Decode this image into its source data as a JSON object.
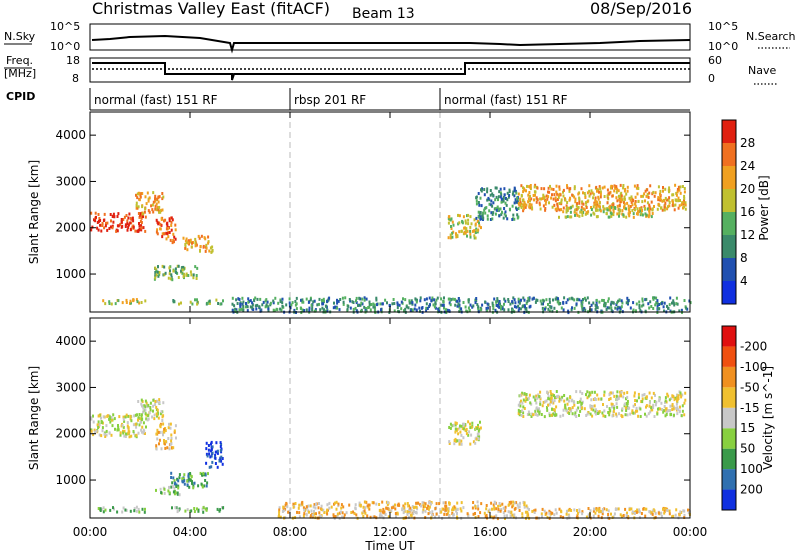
{
  "header": {
    "title": "Christmas Valley East (fitACF)",
    "beam": "Beam 13",
    "date": "08/Sep/2016"
  },
  "top_panels": {
    "nsky_label": "N.Sky",
    "nsky_ticks": [
      "10^5",
      "10^0"
    ],
    "nsearch_label": "N.Search",
    "nsearch_ticks": [
      "10^5",
      "10^0"
    ],
    "freq_label": "Freq.",
    "freq_unit": "[MHz]",
    "freq_ticks": [
      "18",
      "8"
    ],
    "nave_label": "Nave",
    "nave_ticks": [
      "60",
      "0"
    ],
    "cpid_label": "CPID",
    "cpid_segments": [
      {
        "label": "normal (fast) 151 RF",
        "start_h": 0,
        "end_h": 8
      },
      {
        "label": "rbsp 201 RF",
        "start_h": 8,
        "end_h": 14
      },
      {
        "label": "normal (fast) 151 RF",
        "start_h": 14,
        "end_h": 24
      }
    ]
  },
  "chart_data": [
    {
      "type": "heatmap",
      "panel": "power",
      "ylabel": "Slant Range [km]",
      "y_ticks": [
        1000,
        2000,
        3000,
        4000
      ],
      "ylim": [
        180,
        4500
      ],
      "xlim_hours": [
        0,
        24
      ],
      "colorbar": {
        "label": "Power [dB]",
        "ticks": [
          "4",
          "8",
          "12",
          "16",
          "20",
          "24",
          "28"
        ],
        "colors": [
          "#1030e0",
          "#2050b0",
          "#3a8a6a",
          "#55b060",
          "#c0c030",
          "#f0a020",
          "#f07020",
          "#e02010"
        ]
      },
      "regions": [
        {
          "t0": 0.0,
          "t1": 2.2,
          "r0": 1950,
          "r1": 2350,
          "level": 7
        },
        {
          "t0": 1.8,
          "t1": 2.9,
          "r0": 2300,
          "r1": 2800,
          "level": 5
        },
        {
          "t0": 2.6,
          "t1": 3.4,
          "r0": 1700,
          "r1": 2250,
          "level": 6
        },
        {
          "t0": 3.7,
          "t1": 4.9,
          "r0": 1500,
          "r1": 1850,
          "level": 5
        },
        {
          "t0": 2.5,
          "t1": 4.3,
          "r0": 900,
          "r1": 1200,
          "level": 3
        },
        {
          "t0": 0.3,
          "t1": 2.2,
          "r0": 380,
          "r1": 480,
          "level": 4
        },
        {
          "t0": 3.2,
          "t1": 5.3,
          "r0": 380,
          "r1": 480,
          "level": 3
        },
        {
          "t0": 5.6,
          "t1": 24.0,
          "r0": 200,
          "r1": 520,
          "level": 2
        },
        {
          "t0": 14.3,
          "t1": 15.6,
          "r0": 1800,
          "r1": 2300,
          "level": 4
        },
        {
          "t0": 15.4,
          "t1": 17.1,
          "r0": 2200,
          "r1": 2900,
          "level": 2
        },
        {
          "t0": 17.1,
          "t1": 23.8,
          "r0": 2400,
          "r1": 2950,
          "level": 5
        },
        {
          "t0": 18.5,
          "t1": 22.5,
          "r0": 2250,
          "r1": 2500,
          "level": 4
        }
      ]
    },
    {
      "type": "heatmap",
      "panel": "velocity",
      "ylabel": "Slant Range [km]",
      "y_ticks": [
        1000,
        2000,
        3000,
        4000
      ],
      "ylim": [
        180,
        4500
      ],
      "xlim_hours": [
        0,
        24
      ],
      "x_ticks": [
        "00:00",
        "04:00",
        "08:00",
        "12:00",
        "16:00",
        "20:00",
        "00:00"
      ],
      "xlabel": "Time UT",
      "colorbar": {
        "label": "Velocity [m s^-1]",
        "ticks": [
          "200",
          "100",
          "50",
          "15",
          "-15",
          "-50",
          "-100",
          "-200"
        ],
        "colors": [
          "#1030e0",
          "#3070b0",
          "#3a9a4a",
          "#88d040",
          "#c8c8c8",
          "#f0c030",
          "#f09020",
          "#f05010",
          "#e01010"
        ]
      },
      "regions": [
        {
          "t0": 0.0,
          "t1": 2.2,
          "r0": 1950,
          "r1": 2450,
          "level": 4
        },
        {
          "t0": 1.8,
          "t1": 2.9,
          "r0": 2300,
          "r1": 2800,
          "level": 4
        },
        {
          "t0": 2.6,
          "t1": 3.4,
          "r0": 1700,
          "r1": 2250,
          "level": 5
        },
        {
          "t0": 4.6,
          "t1": 5.3,
          "r0": 1300,
          "r1": 1850,
          "level": 0
        },
        {
          "t0": 3.2,
          "t1": 4.7,
          "r0": 850,
          "r1": 1200,
          "level": 2
        },
        {
          "t0": 2.6,
          "t1": 3.6,
          "r0": 700,
          "r1": 900,
          "level": 3
        },
        {
          "t0": 0.3,
          "t1": 2.2,
          "r0": 330,
          "r1": 450,
          "level": 3
        },
        {
          "t0": 3.2,
          "t1": 5.3,
          "r0": 330,
          "r1": 450,
          "level": 3
        },
        {
          "t0": 7.5,
          "t1": 17.5,
          "r0": 200,
          "r1": 560,
          "level": 5
        },
        {
          "t0": 17.5,
          "t1": 24.0,
          "r0": 200,
          "r1": 420,
          "level": 5
        },
        {
          "t0": 14.3,
          "t1": 15.6,
          "r0": 1800,
          "r1": 2300,
          "level": 4
        },
        {
          "t0": 17.1,
          "t1": 23.8,
          "r0": 2400,
          "r1": 2950,
          "level": 4
        }
      ]
    }
  ]
}
